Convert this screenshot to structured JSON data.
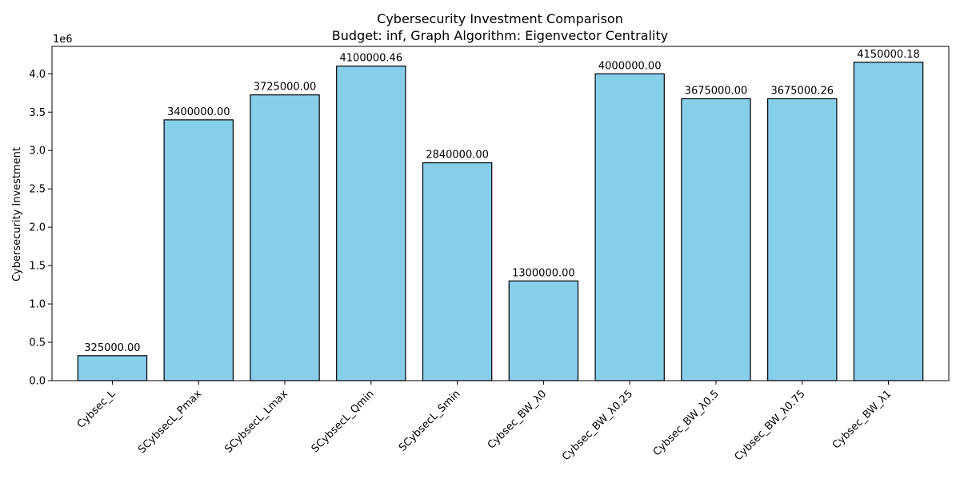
{
  "chart_data": {
    "type": "bar",
    "title": "Cybersecurity Investment Comparison",
    "subtitle": "Budget: inf, Graph Algorithm: Eigenvector Centrality",
    "xlabel": "",
    "ylabel": "Cybersecurity Investment",
    "y_offset_label": "1e6",
    "y_scale_factor": 1000000,
    "ylim": [
      0,
      4357500
    ],
    "yticks": [
      0,
      500000,
      1000000,
      1500000,
      2000000,
      2500000,
      3000000,
      3500000,
      4000000
    ],
    "ytick_labels": [
      "0.0",
      "0.5",
      "1.0",
      "1.5",
      "2.0",
      "2.5",
      "3.0",
      "3.5",
      "4.0"
    ],
    "categories": [
      "Cybsec_L",
      "SCybsecL_Pmax",
      "SCybsecL_Lmax",
      "SCybsecL_Qmin",
      "SCybsecL_Smin",
      "Cybsec_BW_λ0",
      "Cybsec_BW_λ0.25",
      "Cybsec_BW_λ0.5",
      "Cybsec_BW_λ0.75",
      "Cybsec_BW_λ1"
    ],
    "values": [
      325000.0,
      3400000.0,
      3725000.0,
      4100000.46,
      2840000.0,
      1300000.0,
      4000000.0,
      3675000.0,
      3675000.26,
      4150000.18
    ],
    "value_labels": [
      "325000.00",
      "3400000.00",
      "3725000.00",
      "4100000.46",
      "2840000.00",
      "1300000.00",
      "4000000.00",
      "3675000.00",
      "3675000.26",
      "4150000.18"
    ],
    "bar_color": "#87ceeb",
    "bar_edge_color": "#000000",
    "grid": false,
    "legend": false
  }
}
